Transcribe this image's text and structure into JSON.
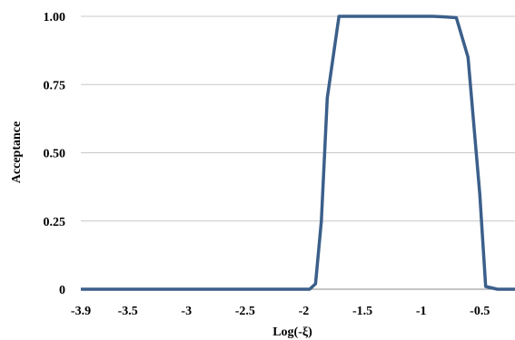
{
  "chart_data": {
    "type": "line",
    "title": "",
    "xlabel": "Log(-ξ)",
    "ylabel": "Acceptance",
    "xlim": [
      -3.9,
      -0.2
    ],
    "ylim": [
      0,
      1.0
    ],
    "x_ticks": [
      -3.9,
      -3.5,
      -3,
      -2.5,
      -2,
      -1.5,
      -1,
      -0.5
    ],
    "x_tick_labels": [
      "-3.9",
      "-3.5",
      "-3",
      "-2.5",
      "-2",
      "-1.5",
      "-1",
      "-0.5"
    ],
    "y_ticks": [
      0,
      0.25,
      0.5,
      0.75,
      1.0
    ],
    "y_tick_labels": [
      "0",
      "0.25",
      "0.50",
      "0.75",
      "1.00"
    ],
    "grid": "horizontal",
    "legend": "none",
    "series": [
      {
        "color": "#3b5f8a",
        "x": [
          -3.9,
          -3.5,
          -3.0,
          -2.5,
          -2.0,
          -1.95,
          -1.9,
          -1.85,
          -1.8,
          -1.7,
          -1.6,
          -1.5,
          -1.4,
          -1.3,
          -1.2,
          -1.1,
          -1.0,
          -0.9,
          -0.8,
          -0.7,
          -0.6,
          -0.5,
          -0.45,
          -0.4,
          -0.35,
          -0.3,
          -0.2
        ],
        "y": [
          0,
          0,
          0,
          0,
          0,
          0,
          0.02,
          0.25,
          0.7,
          1.0,
          1.0,
          1.0,
          1.0,
          1.0,
          1.0,
          1.0,
          1.0,
          1.0,
          0.998,
          0.995,
          0.85,
          0.35,
          0.01,
          0.005,
          0,
          0,
          0
        ]
      }
    ]
  }
}
